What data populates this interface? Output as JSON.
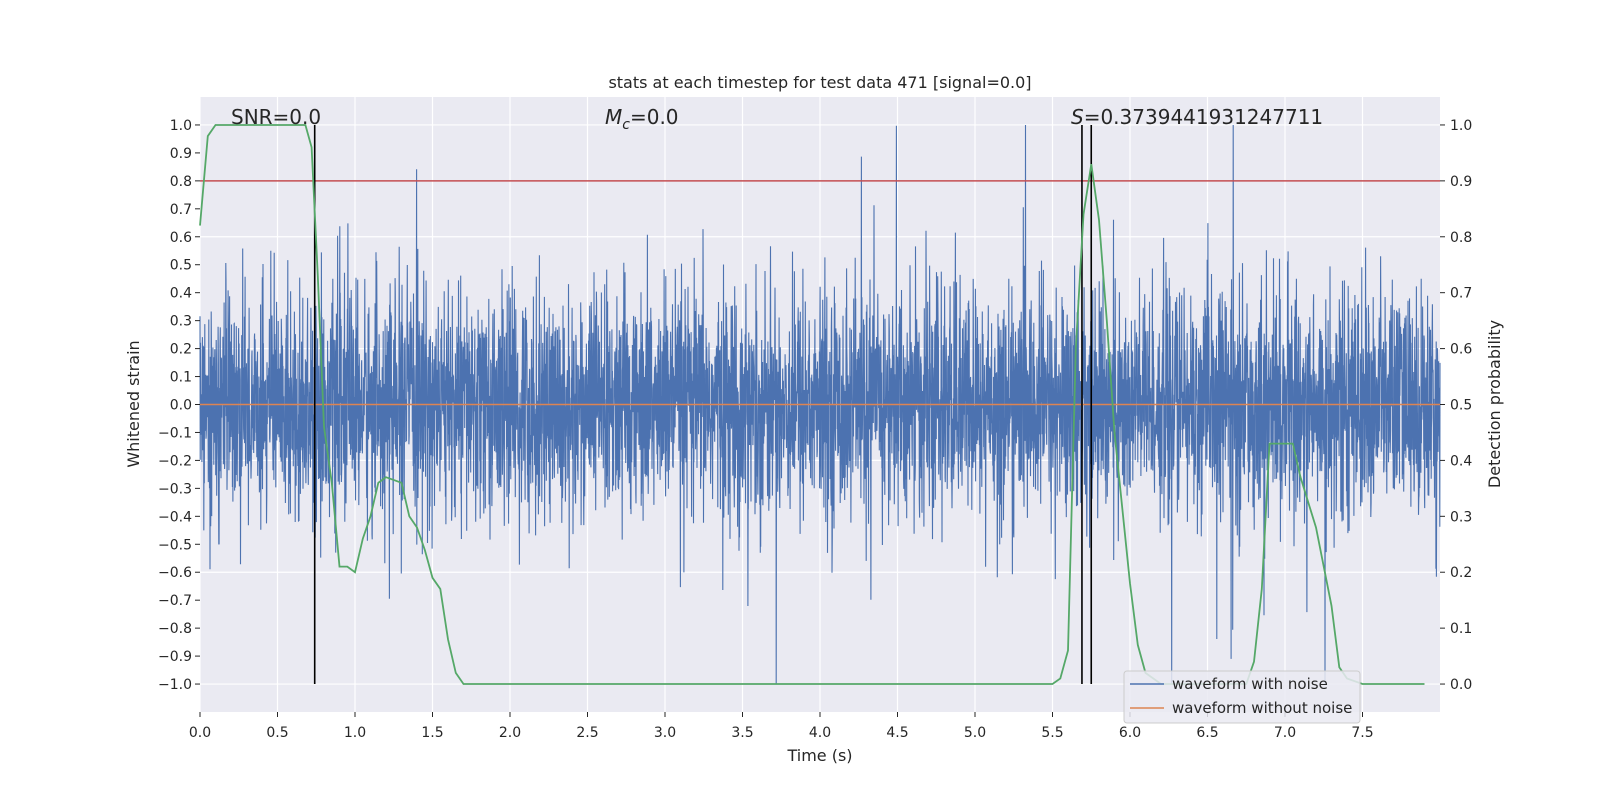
{
  "chart_data": {
    "type": "line",
    "title": "stats at each timestep for test data 471 [signal=0.0]",
    "xlabel": "Time (s)",
    "ylabel": "Whitened strain",
    "y2label": "Detection probability",
    "xlim": [
      0.0,
      8.0
    ],
    "ylim": [
      -1.1,
      1.1
    ],
    "y2lim": [
      -0.05,
      1.05
    ],
    "xticks": [
      "0.0",
      "0.5",
      "1.0",
      "1.5",
      "2.0",
      "2.5",
      "3.0",
      "3.5",
      "4.0",
      "4.5",
      "5.0",
      "5.5",
      "6.0",
      "6.5",
      "7.0",
      "7.5"
    ],
    "xtick_values": [
      0.0,
      0.5,
      1.0,
      1.5,
      2.0,
      2.5,
      3.0,
      3.5,
      4.0,
      4.5,
      5.0,
      5.5,
      6.0,
      6.5,
      7.0,
      7.5
    ],
    "yticks": [
      "1.0",
      "0.9",
      "0.8",
      "0.7",
      "0.6",
      "0.5",
      "0.4",
      "0.3",
      "0.2",
      "0.1",
      "0.0",
      "−0.1",
      "−0.2",
      "−0.3",
      "−0.4",
      "−0.5",
      "−0.6",
      "−0.7",
      "−0.8",
      "−0.9",
      "−1.0"
    ],
    "ytick_values": [
      1.0,
      0.9,
      0.8,
      0.7,
      0.6,
      0.5,
      0.4,
      0.3,
      0.2,
      0.1,
      0.0,
      -0.1,
      -0.2,
      -0.3,
      -0.4,
      -0.5,
      -0.6,
      -0.7,
      -0.8,
      -0.9,
      -1.0
    ],
    "y2ticks": [
      "1.0",
      "0.9",
      "0.8",
      "0.7",
      "0.6",
      "0.5",
      "0.4",
      "0.3",
      "0.2",
      "0.1",
      "0.0"
    ],
    "y2tick_values": [
      1.0,
      0.9,
      0.8,
      0.7,
      0.6,
      0.5,
      0.4,
      0.3,
      0.2,
      0.1,
      0.0
    ],
    "annotations": {
      "snr": "SNR=0.0",
      "mc_symbol": "M",
      "mc_sub": "c",
      "mc_value": "=0.0",
      "s_symbol": "S",
      "s_value": "=0.3739441931247711"
    },
    "threshold": {
      "value": 0.9,
      "axis": "y2",
      "color": "#c44e52"
    },
    "vertical_lines": [
      0.74,
      5.69,
      5.75
    ],
    "vertical_lines_range": [
      -1.0,
      1.0
    ],
    "noisy_waveform": {
      "name": "waveform with noise",
      "color": "#4c72b0",
      "note": "dense noise samples from 0 to 8 s, amplitude about -1.0 to 1.0"
    },
    "clean_waveform": {
      "name": "waveform without noise",
      "color": "#dd8452",
      "value": 0.0
    },
    "detection_probability": {
      "name": "detection probability",
      "color": "#55a868",
      "x": [
        0.0,
        0.05,
        0.1,
        0.2,
        0.3,
        0.4,
        0.5,
        0.6,
        0.68,
        0.72,
        0.76,
        0.8,
        0.85,
        0.9,
        0.95,
        1.0,
        1.05,
        1.1,
        1.15,
        1.2,
        1.3,
        1.35,
        1.4,
        1.45,
        1.5,
        1.55,
        1.6,
        1.65,
        1.7,
        1.75,
        2.0,
        3.0,
        4.0,
        5.0,
        5.5,
        5.55,
        5.6,
        5.65,
        5.7,
        5.75,
        5.8,
        5.85,
        5.9,
        6.0,
        6.05,
        6.1,
        6.2,
        6.5,
        6.75,
        6.8,
        6.85,
        6.9,
        6.95,
        7.0,
        7.05,
        7.1,
        7.2,
        7.3,
        7.35,
        7.4,
        7.5,
        7.6,
        7.7,
        7.9
      ],
      "y": [
        0.82,
        0.98,
        1.0,
        1.0,
        1.0,
        1.0,
        1.0,
        1.0,
        1.0,
        0.96,
        0.73,
        0.46,
        0.36,
        0.21,
        0.21,
        0.2,
        0.26,
        0.3,
        0.36,
        0.37,
        0.36,
        0.3,
        0.28,
        0.24,
        0.19,
        0.17,
        0.08,
        0.02,
        0.0,
        0.0,
        0.0,
        0.0,
        0.0,
        0.0,
        0.0,
        0.01,
        0.06,
        0.6,
        0.84,
        0.93,
        0.83,
        0.65,
        0.45,
        0.18,
        0.07,
        0.02,
        0.0,
        0.0,
        0.0,
        0.04,
        0.17,
        0.43,
        0.43,
        0.43,
        0.43,
        0.37,
        0.28,
        0.14,
        0.03,
        0.01,
        0.0,
        0.0,
        0.0,
        0.0
      ]
    },
    "legend": {
      "placement": "bottom-right",
      "entries": [
        {
          "label": "waveform with noise",
          "color": "#4c72b0"
        },
        {
          "label": "waveform without noise",
          "color": "#dd8452"
        }
      ]
    },
    "grid": true
  }
}
